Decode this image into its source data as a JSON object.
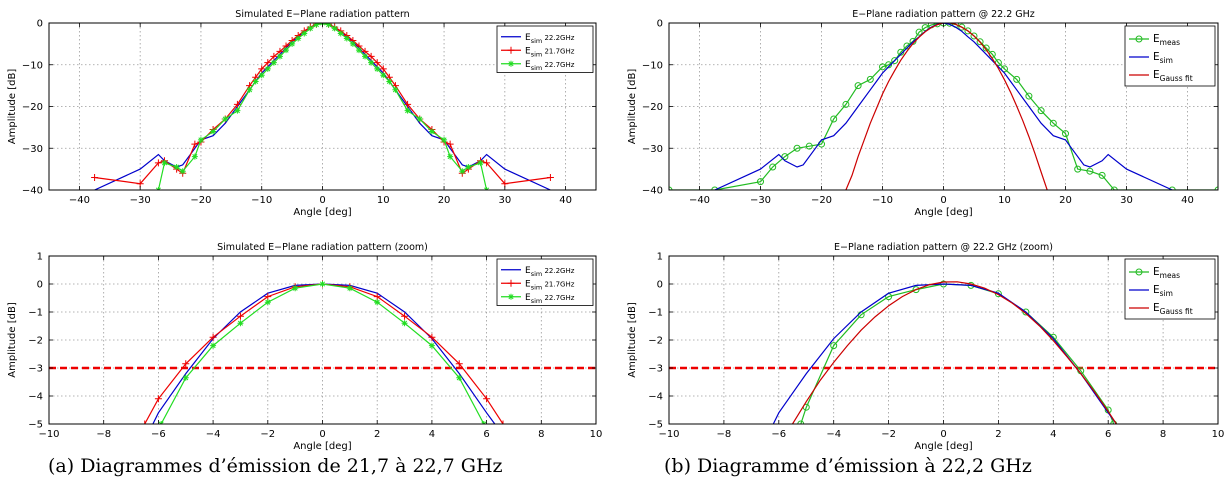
{
  "captions": {
    "left": "(a) Diagrammes d’émission de 21,7 à 22,7 GHz",
    "right": "(b) Diagramme d’émission à 22,2 GHz"
  },
  "chart_data": [
    {
      "id": "a-full",
      "type": "line",
      "title": "Simulated E−Plane radiation pattern",
      "xlabel": "Angle [deg]",
      "ylabel": "Amplitude [dB]",
      "xlim": [
        -45,
        45
      ],
      "ylim": [
        -40,
        0
      ],
      "xticks": [
        -40,
        -30,
        -20,
        -10,
        0,
        10,
        20,
        30,
        40
      ],
      "yticks": [
        0,
        -10,
        -20,
        -30,
        -40
      ],
      "grid": true,
      "legend_position": "top-right",
      "series": [
        {
          "name": "E",
          "sub": "sim",
          "suffix": " 22.2GHz",
          "color": "#0000cc",
          "marker": "none",
          "x": [
            -37.5,
            -30,
            -27,
            -26,
            -24,
            -23,
            -21,
            -20,
            -18,
            -16,
            -14,
            -12,
            -11,
            -10,
            -9,
            -8,
            -7,
            -6,
            -5,
            -4,
            -3,
            -2,
            -1,
            0,
            1,
            2,
            3,
            4,
            5,
            6,
            7,
            8,
            9,
            10,
            11,
            12,
            14,
            16,
            18,
            20,
            21,
            23,
            24,
            26,
            27,
            30,
            37.5
          ],
          "y": [
            -40,
            -35,
            -31.5,
            -33,
            -34.5,
            -34,
            -30,
            -28,
            -27,
            -24,
            -20,
            -16,
            -14,
            -12,
            -10.5,
            -9,
            -7.5,
            -6,
            -4.5,
            -3.3,
            -2,
            -1,
            -0.3,
            0,
            -0.3,
            -1,
            -2,
            -3.3,
            -4.5,
            -6,
            -7.5,
            -9,
            -10.5,
            -12,
            -14,
            -16,
            -20,
            -24,
            -27,
            -28,
            -30,
            -34,
            -34.5,
            -33,
            -31.5,
            -35,
            -40
          ]
        },
        {
          "name": "E",
          "sub": "sim",
          "suffix": " 21.7GHz",
          "color": "#ee0000",
          "marker": "plus",
          "x": [
            -37.5,
            -30,
            -27,
            -26,
            -24,
            -23,
            -21,
            -20,
            -18,
            -16,
            -14,
            -12,
            -11,
            -10,
            -9,
            -8,
            -7,
            -6,
            -5,
            -4,
            -3,
            -2,
            -1,
            0,
            1,
            2,
            3,
            4,
            5,
            6,
            7,
            8,
            9,
            10,
            11,
            12,
            14,
            16,
            18,
            20,
            21,
            23,
            24,
            26,
            27,
            30,
            37.5
          ],
          "y": [
            -37,
            -38.5,
            -33.5,
            -33,
            -35,
            -36,
            -29,
            -28.5,
            -25.5,
            -23,
            -19.5,
            -15,
            -13,
            -11,
            -9.5,
            -8,
            -6.8,
            -5.5,
            -4.2,
            -3,
            -1.9,
            -1,
            -0.3,
            0,
            -0.3,
            -1,
            -1.9,
            -3,
            -4.2,
            -5.5,
            -6.8,
            -8,
            -9.5,
            -11,
            -13,
            -15,
            -19.5,
            -23,
            -25.5,
            -28.5,
            -29,
            -36,
            -35,
            -33,
            -33.5,
            -38.5,
            -37
          ]
        },
        {
          "name": "E",
          "sub": "sim",
          "suffix": " 22.7GHz",
          "color": "#22dd22",
          "marker": "star",
          "x": [
            -27,
            -26,
            -24,
            -23,
            -21,
            -20,
            -18,
            -16,
            -14,
            -12,
            -11,
            -10,
            -9,
            -8,
            -7,
            -6,
            -5,
            -4,
            -3,
            -2,
            -1,
            0,
            1,
            2,
            3,
            4,
            5,
            6,
            7,
            8,
            9,
            10,
            11,
            12,
            14,
            16,
            18,
            20,
            21,
            23,
            24,
            26,
            27
          ],
          "y": [
            -40,
            -33.5,
            -34.5,
            -35.5,
            -32,
            -28,
            -26,
            -23,
            -21,
            -16,
            -14,
            -12.5,
            -11,
            -9.5,
            -8,
            -6.5,
            -5,
            -3.7,
            -2.5,
            -1.3,
            -0.4,
            0,
            -0.4,
            -1.3,
            -2.5,
            -3.7,
            -5,
            -6.5,
            -8,
            -9.5,
            -11,
            -12.5,
            -14,
            -16,
            -21,
            -23,
            -26,
            -28,
            -32,
            -35.5,
            -34.5,
            -33.5,
            -40
          ]
        }
      ]
    },
    {
      "id": "b-full",
      "type": "line",
      "title": "E−Plane radiation pattern @ 22.2 GHz",
      "xlabel": "Angle [deg]",
      "ylabel": "Amplitude [dB]",
      "xlim": [
        -45,
        45
      ],
      "ylim": [
        -40,
        0
      ],
      "xticks": [
        -40,
        -30,
        -20,
        -10,
        0,
        10,
        20,
        30,
        40
      ],
      "yticks": [
        0,
        -10,
        -20,
        -30,
        -40
      ],
      "grid": true,
      "legend_position": "top-right",
      "series": [
        {
          "name": "E",
          "sub": "meas",
          "suffix": "",
          "color": "#22bb22",
          "marker": "circle",
          "x": [
            -45,
            -37.5,
            -30,
            -28,
            -26,
            -24,
            -22,
            -20,
            -18,
            -16,
            -14,
            -12,
            -10,
            -9,
            -8,
            -7,
            -6,
            -5,
            -4,
            -3,
            -2,
            -1,
            0,
            1,
            2,
            3,
            4,
            5,
            6,
            7,
            8,
            9,
            10,
            12,
            14,
            16,
            18,
            20,
            22,
            24,
            26,
            28,
            37.5,
            45
          ],
          "y": [
            -40,
            -40,
            -38,
            -34.5,
            -32,
            -30,
            -29.5,
            -29,
            -23,
            -19.5,
            -15,
            -13.5,
            -10.5,
            -10,
            -9,
            -7,
            -5.5,
            -4.4,
            -2.2,
            -1.1,
            -0.45,
            -0.2,
            0,
            -0.05,
            -0.35,
            -1.0,
            -1.9,
            -3.1,
            -4.5,
            -6,
            -7.5,
            -9.5,
            -11,
            -13.5,
            -17.5,
            -21,
            -24,
            -26.5,
            -35,
            -35.5,
            -36.5,
            -40,
            -40,
            -40
          ]
        },
        {
          "name": "E",
          "sub": "sim",
          "suffix": "",
          "color": "#0000cc",
          "marker": "none",
          "x": [
            -37.5,
            -30,
            -27,
            -26,
            -24,
            -23,
            -21,
            -20,
            -18,
            -16,
            -14,
            -12,
            -11,
            -10,
            -9,
            -8,
            -7,
            -6,
            -5,
            -4,
            -3,
            -2,
            -1,
            0,
            1,
            2,
            3,
            4,
            5,
            6,
            7,
            8,
            9,
            10,
            11,
            12,
            14,
            16,
            18,
            20,
            21,
            23,
            24,
            26,
            27,
            30,
            37.5
          ],
          "y": [
            -40,
            -35,
            -31.5,
            -33,
            -34.5,
            -34,
            -30,
            -28,
            -27,
            -24,
            -20,
            -16,
            -14,
            -12,
            -10.5,
            -9,
            -7.5,
            -6,
            -4.5,
            -3.3,
            -2,
            -1,
            -0.3,
            0,
            -0.3,
            -1,
            -2,
            -3.3,
            -4.5,
            -6,
            -7.5,
            -9,
            -10.5,
            -12,
            -14,
            -16,
            -20,
            -24,
            -27,
            -28,
            -30,
            -34,
            -34.5,
            -33,
            -31.5,
            -35,
            -40
          ]
        },
        {
          "name": "E",
          "sub": "Gauss fit",
          "suffix": "",
          "color": "#cc0000",
          "marker": "none",
          "x": [
            -16,
            -15,
            -14,
            -13,
            -12,
            -11,
            -10,
            -9,
            -8,
            -7,
            -6,
            -5,
            -4,
            -3,
            -2,
            -1,
            0,
            1,
            2,
            3,
            4,
            5,
            6,
            7,
            8,
            9,
            10,
            11,
            12,
            13,
            14,
            15,
            16,
            17
          ],
          "y": [
            -40,
            -36.5,
            -32,
            -28,
            -24,
            -20.5,
            -17,
            -14,
            -11.4,
            -8.9,
            -6.8,
            -4.9,
            -3.4,
            -2.1,
            -1.1,
            -0.4,
            0.05,
            0.05,
            -0.3,
            -1.0,
            -1.9,
            -3.1,
            -4.6,
            -6.4,
            -8.5,
            -10.9,
            -13.6,
            -16.6,
            -19.9,
            -23.4,
            -27.2,
            -31.3,
            -35.7,
            -40
          ]
        }
      ]
    },
    {
      "id": "a-zoom",
      "type": "line",
      "title": "Simulated E−Plane radiation pattern (zoom)",
      "xlabel": "Angle [deg]",
      "ylabel": "Amplitude [dB]",
      "xlim": [
        -10,
        10
      ],
      "ylim": [
        -5,
        1
      ],
      "xticks": [
        -10,
        -8,
        -6,
        -4,
        -2,
        0,
        2,
        4,
        6,
        8,
        10
      ],
      "yticks": [
        1,
        0,
        -1,
        -2,
        -3,
        -4,
        -5
      ],
      "grid": true,
      "legend_position": "top-right",
      "reference_line": {
        "y": -3,
        "color": "#ee0000",
        "style": "dashed"
      },
      "series": [
        {
          "name": "E",
          "sub": "sim",
          "suffix": " 22.2GHz",
          "color": "#0000cc",
          "marker": "none",
          "x": [
            -6.2,
            -6,
            -5,
            -4,
            -3,
            -2,
            -1,
            0,
            1,
            2,
            3,
            4,
            5,
            6,
            6.3
          ],
          "y": [
            -5,
            -4.6,
            -3.2,
            -1.95,
            -1.0,
            -0.33,
            -0.05,
            0,
            -0.05,
            -0.33,
            -1.0,
            -1.95,
            -3.2,
            -4.6,
            -5
          ]
        },
        {
          "name": "E",
          "sub": "sim",
          "suffix": " 21.7GHz",
          "color": "#ee0000",
          "marker": "plus",
          "x": [
            -6.5,
            -6,
            -5,
            -4,
            -3,
            -2,
            -1,
            0,
            1,
            2,
            3,
            4,
            5,
            6,
            6.6
          ],
          "y": [
            -5,
            -4.1,
            -2.85,
            -1.9,
            -1.15,
            -0.45,
            -0.1,
            0,
            -0.1,
            -0.45,
            -1.15,
            -1.9,
            -2.85,
            -4.1,
            -5
          ]
        },
        {
          "name": "E",
          "sub": "sim",
          "suffix": " 22.7GHz",
          "color": "#22dd22",
          "marker": "star",
          "x": [
            -5.9,
            -5,
            -4,
            -3,
            -2,
            -1,
            0,
            1,
            2,
            3,
            4,
            5,
            5.9
          ],
          "y": [
            -5,
            -3.35,
            -2.2,
            -1.4,
            -0.65,
            -0.15,
            0,
            -0.15,
            -0.65,
            -1.4,
            -2.2,
            -3.35,
            -5
          ]
        }
      ]
    },
    {
      "id": "b-zoom",
      "type": "line",
      "title": "E−Plane radiation pattern @ 22.2 GHz (zoom)",
      "xlabel": "Angle [deg]",
      "ylabel": "Amplitude [dB]",
      "xlim": [
        -10,
        10
      ],
      "ylim": [
        -5,
        1
      ],
      "xticks": [
        -10,
        -8,
        -6,
        -4,
        -2,
        0,
        2,
        4,
        6,
        8,
        10
      ],
      "yticks": [
        1,
        0,
        -1,
        -2,
        -3,
        -4,
        -5
      ],
      "grid": true,
      "legend_position": "top-right",
      "reference_line": {
        "y": -3,
        "color": "#ee0000",
        "style": "dashed"
      },
      "series": [
        {
          "name": "E",
          "sub": "meas",
          "suffix": "",
          "color": "#22bb22",
          "marker": "circle",
          "x": [
            -5.2,
            -5,
            -4,
            -3,
            -2,
            -1,
            0,
            1,
            2,
            3,
            4,
            5,
            6,
            6.2
          ],
          "y": [
            -5,
            -4.4,
            -2.2,
            -1.1,
            -0.45,
            -0.2,
            0,
            -0.05,
            -0.35,
            -1.0,
            -1.9,
            -3.1,
            -4.5,
            -5
          ]
        },
        {
          "name": "E",
          "sub": "sim",
          "suffix": "",
          "color": "#0000cc",
          "marker": "none",
          "x": [
            -6.2,
            -6,
            -5,
            -4,
            -3,
            -2,
            -1,
            0,
            1,
            2,
            3,
            4,
            5,
            6,
            6.3
          ],
          "y": [
            -5,
            -4.6,
            -3.2,
            -1.95,
            -1.0,
            -0.33,
            -0.05,
            0,
            -0.05,
            -0.33,
            -1.0,
            -1.95,
            -3.2,
            -4.6,
            -5
          ]
        },
        {
          "name": "E",
          "sub": "Gauss fit",
          "suffix": "",
          "color": "#cc0000",
          "marker": "none",
          "x": [
            -5.5,
            -5,
            -4.5,
            -4,
            -3.5,
            -3,
            -2.5,
            -2,
            -1.5,
            -1,
            -0.5,
            0,
            0.5,
            1,
            1.5,
            2,
            2.5,
            3,
            3.5,
            4,
            4.5,
            5,
            5.5,
            6,
            6.3
          ],
          "y": [
            -5,
            -4.2,
            -3.45,
            -2.8,
            -2.2,
            -1.65,
            -1.18,
            -0.78,
            -0.45,
            -0.2,
            -0.02,
            0.07,
            0.08,
            0.0,
            -0.15,
            -0.38,
            -0.68,
            -1.05,
            -1.5,
            -2.02,
            -2.6,
            -3.2,
            -3.85,
            -4.55,
            -5
          ]
        }
      ]
    }
  ]
}
